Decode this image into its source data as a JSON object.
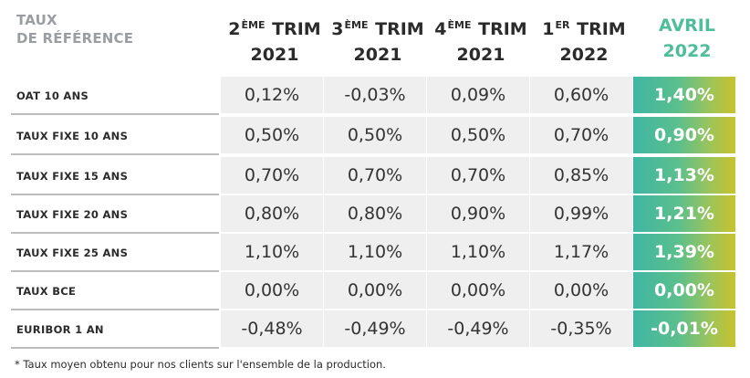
{
  "corner": {
    "line1": "TAUX",
    "line2": "DE RÉFÉRENCE"
  },
  "columns": [
    {
      "base": "2",
      "sup": "ÈME",
      "rest": " TRIM",
      "year": "2021"
    },
    {
      "base": "3",
      "sup": "ÈME",
      "rest": " TRIM",
      "year": "2021"
    },
    {
      "base": "4",
      "sup": "ÈME",
      "rest": " TRIM",
      "year": "2021"
    },
    {
      "base": "1",
      "sup": "ER",
      "rest": " TRIM",
      "year": "2022"
    },
    {
      "base": "AVRIL",
      "sup": "",
      "rest": "",
      "year": "2022"
    }
  ],
  "rows": [
    {
      "label": "OAT 10 ANS",
      "values": [
        "0,12%",
        "-0,03%",
        "0,09%",
        "0,60%",
        "1,40%"
      ]
    },
    {
      "label": "TAUX FIXE 10 ANS",
      "values": [
        "0,50%",
        "0,50%",
        "0,50%",
        "0,70%",
        "0,90%"
      ]
    },
    {
      "label": "TAUX FIXE 15 ANS",
      "values": [
        "0,70%",
        "0,70%",
        "0,70%",
        "0,85%",
        "1,13%"
      ]
    },
    {
      "label": "TAUX FIXE 20 ANS",
      "values": [
        "0,80%",
        "0,80%",
        "0,90%",
        "0,99%",
        "1,21%"
      ]
    },
    {
      "label": "TAUX FIXE 25 ANS",
      "values": [
        "1,10%",
        "1,10%",
        "1,10%",
        "1,17%",
        "1,39%"
      ]
    },
    {
      "label": "TAUX BCE",
      "values": [
        "0,00%",
        "0,00%",
        "0,00%",
        "0,00%",
        "0,00%"
      ]
    },
    {
      "label": "EURIBOR 1 AN",
      "values": [
        "-0,48%",
        "-0,49%",
        "-0,49%",
        "-0,35%",
        "-0,01%"
      ]
    }
  ],
  "footnote": "* Taux moyen obtenu pour nos clients sur l'ensemble de la production.",
  "colors": {
    "accent": "#4dbd9c",
    "cell_bg": "#efefef",
    "gradient_start": "#3fb6a3",
    "gradient_end": "#c8c22c"
  }
}
